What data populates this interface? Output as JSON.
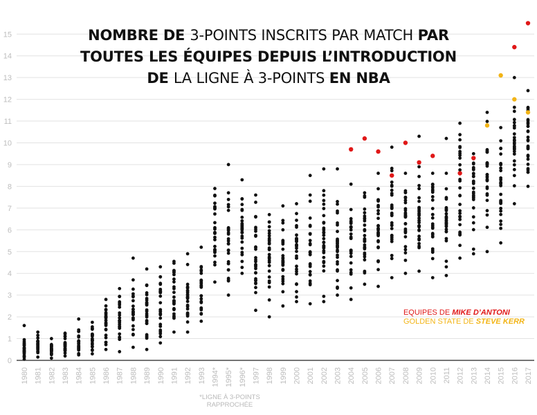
{
  "title": {
    "line1": [
      {
        "text": "NOMBRE DE ",
        "bold": true
      },
      {
        "text": "3-POINTS INSCRITS PAR MATCH ",
        "bold": false
      },
      {
        "text": "PAR",
        "bold": true
      }
    ],
    "line2": [
      {
        "text": "TOUTES LES ÉQUIPES DEPUIS L’INTRODUCTION",
        "bold": true
      }
    ],
    "line3": [
      {
        "text": "DE ",
        "bold": true
      },
      {
        "text": "LA LIGNE À 3-POINTS ",
        "bold": false
      },
      {
        "text": "EN NBA",
        "bold": true
      }
    ]
  },
  "legend": {
    "red_prefix": "EQUIPES DE ",
    "red_name": "MIKE D’ANTONI",
    "yellow_prefix": "GOLDEN STATE DE ",
    "yellow_name": "STEVE KERR"
  },
  "note": {
    "line1": "*LIGNE À 3-POINTS",
    "line2": "RAPPROCHÉE"
  },
  "colors": {
    "dot": "#111111",
    "dantoni": "#e01818",
    "kerr": "#f2b416",
    "grid": "#e2e2e2",
    "tick": "#bdbdbd"
  },
  "chart_data": {
    "type": "scatter",
    "title": "NOMBRE DE 3-POINTS INSCRITS PAR MATCH PAR TOUTES LES ÉQUIPES DEPUIS L’INTRODUCTION DE LA LIGNE À 3-POINTS EN NBA",
    "xlabel": "",
    "ylabel": "",
    "ylim": [
      0,
      15
    ],
    "yticks": [
      0,
      1,
      2,
      3,
      4,
      5,
      6,
      7,
      8,
      9,
      10,
      11,
      12,
      13,
      14,
      15
    ],
    "grid": true,
    "legend_position": "bottom-right",
    "categories": [
      "1980",
      "1981",
      "1982",
      "1983",
      "1984",
      "1985",
      "1986",
      "1987",
      "1988",
      "1989",
      "1990",
      "1991",
      "1992",
      "1993",
      "1994*",
      "1995*",
      "1996*",
      "1997",
      "1998",
      "1999",
      "2000",
      "2001",
      "2002",
      "2003",
      "2004",
      "2005",
      "2006",
      "2007",
      "2008",
      "2009",
      "2010",
      "2011",
      "2012",
      "2013",
      "2014",
      "2015",
      "2016",
      "2017"
    ],
    "seasons": [
      {
        "min": 0.05,
        "max": 0.95,
        "n": 22,
        "extra": [
          1.6
        ]
      },
      {
        "min": 0.15,
        "max": 1.3,
        "n": 23
      },
      {
        "min": 0.1,
        "max": 1.0,
        "n": 23
      },
      {
        "min": 0.2,
        "max": 1.25,
        "n": 23
      },
      {
        "min": 0.25,
        "max": 1.4,
        "n": 23,
        "extra": [
          1.9
        ]
      },
      {
        "min": 0.3,
        "max": 1.75,
        "n": 23
      },
      {
        "min": 0.5,
        "max": 2.8,
        "n": 23
      },
      {
        "min": 0.4,
        "max": 3.3,
        "n": 23
      },
      {
        "min": 0.6,
        "max": 3.7,
        "n": 25,
        "extra": [
          4.7
        ]
      },
      {
        "min": 0.5,
        "max": 4.2,
        "n": 25
      },
      {
        "min": 0.8,
        "max": 4.3,
        "n": 27
      },
      {
        "min": 1.3,
        "max": 4.55,
        "n": 27
      },
      {
        "min": 1.3,
        "max": 4.9,
        "n": 27
      },
      {
        "min": 1.8,
        "max": 5.2,
        "n": 27
      },
      {
        "min": 3.6,
        "max": 7.9,
        "n": 27
      },
      {
        "min": 3.0,
        "max": 7.7,
        "n": 27,
        "extra": [
          9.0
        ]
      },
      {
        "min": 4.0,
        "max": 8.3,
        "n": 29
      },
      {
        "min": 2.3,
        "max": 7.6,
        "n": 29
      },
      {
        "min": 2.0,
        "max": 6.7,
        "n": 29
      },
      {
        "min": 2.5,
        "max": 7.1,
        "n": 29
      },
      {
        "min": 2.7,
        "max": 7.2,
        "n": 29
      },
      {
        "min": 2.6,
        "max": 7.6,
        "n": 29,
        "extra": [
          8.5
        ]
      },
      {
        "min": 2.7,
        "max": 7.8,
        "n": 29,
        "extra": [
          8.8
        ]
      },
      {
        "min": 3.0,
        "max": 7.3,
        "n": 29,
        "extra": [
          8.8
        ]
      },
      {
        "min": 2.8,
        "max": 8.1,
        "n": 29,
        "red": [
          9.7
        ]
      },
      {
        "min": 3.5,
        "max": 7.7,
        "n": 29,
        "red": [
          10.2
        ]
      },
      {
        "min": 3.4,
        "max": 8.6,
        "n": 29,
        "red": [
          9.6
        ]
      },
      {
        "min": 3.8,
        "max": 9.8,
        "n": 29,
        "red": [
          8.5
        ]
      },
      {
        "min": 4.0,
        "max": 8.6,
        "n": 29,
        "red": [
          10.0
        ]
      },
      {
        "min": 4.1,
        "max": 8.9,
        "n": 29,
        "extra": [
          10.3
        ],
        "red": [
          9.1
        ]
      },
      {
        "min": 3.8,
        "max": 8.6,
        "n": 29,
        "red": [
          9.4
        ]
      },
      {
        "min": 3.9,
        "max": 8.6,
        "n": 29,
        "extra": [
          10.2
        ]
      },
      {
        "min": 4.7,
        "max": 10.9,
        "n": 29,
        "red": [
          8.6
        ]
      },
      {
        "min": 4.9,
        "max": 9.5,
        "n": 29,
        "red": [
          9.3
        ]
      },
      {
        "min": 5.0,
        "max": 11.4,
        "n": 29,
        "kerr": [
          10.8
        ]
      },
      {
        "min": 5.4,
        "max": 10.7,
        "n": 29,
        "kerr": [
          13.1
        ]
      },
      {
        "min": 7.2,
        "max": 12.0,
        "n": 28,
        "extra": [
          13.0
        ],
        "red": [
          14.4
        ],
        "kerr": [
          12.0
        ]
      },
      {
        "min": 8.0,
        "max": 12.4,
        "n": 28,
        "red": [
          15.5
        ],
        "kerr": [
          11.4
        ]
      }
    ]
  }
}
